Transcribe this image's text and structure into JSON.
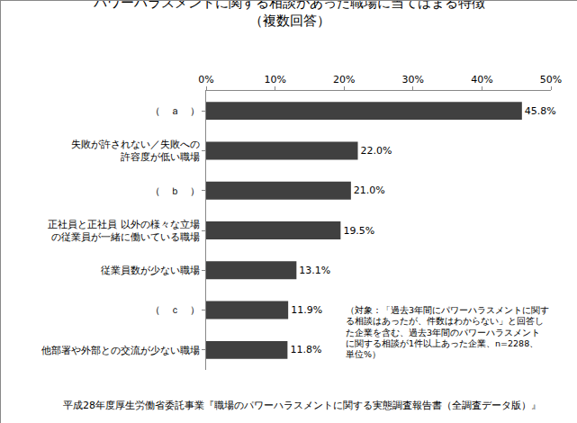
{
  "chart_data": {
    "type": "bar",
    "orientation": "horizontal",
    "title": "パワーハラスメントに関する相談があった職場に当てはまる特徴",
    "subtitle": "（複数回答）",
    "categories": [
      "（　ａ　）",
      "失敗が許されない／失敗への\n許容度が低い職場",
      "（　ｂ　）",
      "正社員と正社員 以外の様々な立場\nの従業員が一緒に働いている職場",
      "従業員数が少ない職場",
      "（　ｃ　）",
      "他部署や外部との交流が少ない職場"
    ],
    "values": [
      45.8,
      22.0,
      21.0,
      19.5,
      13.1,
      11.9,
      11.8
    ],
    "value_labels": [
      "45.8%",
      "22.0%",
      "21.0%",
      "19.5%",
      "13.1%",
      "11.9%",
      "11.8%"
    ],
    "data_labels": true,
    "color": "#404040",
    "xlim": [
      0,
      50
    ],
    "xticks": [
      {
        "value": 0,
        "label": "0%"
      },
      {
        "value": 10,
        "label": "10%"
      },
      {
        "value": 20,
        "label": "20%"
      },
      {
        "value": 30,
        "label": "30%"
      },
      {
        "value": 40,
        "label": "40%"
      },
      {
        "value": 50,
        "label": "50%"
      }
    ],
    "grid": false,
    "annotations": [
      "（対象：「過去3年間にパワーハラスメントに関す\nる相談はあったが、件数はわからない」と回答し\nた企業を含む、過去3年間のパワーハラスメント\nに関する相談が1件以上あった企業、n=2288、\n単位%）",
      "平成28年度厚生労働省委託事業『職場のパワーハラスメントに関する実態調査報告書（全調査データ版）』"
    ]
  }
}
